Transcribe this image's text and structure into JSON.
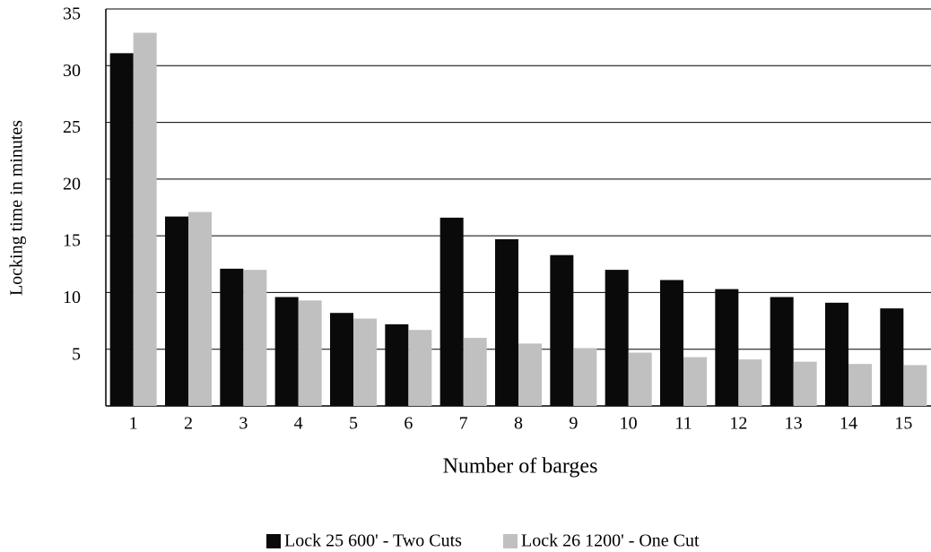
{
  "chart_data": {
    "type": "bar",
    "x_label": "Number of barges",
    "y_label": "Locking time in minutes",
    "categories": [
      "1",
      "2",
      "3",
      "4",
      "5",
      "6",
      "7",
      "8",
      "9",
      "10",
      "11",
      "12",
      "13",
      "14",
      "15"
    ],
    "series": [
      {
        "name": "Lock 25 600' - Two Cuts",
        "color": "#0a0a0a",
        "values": [
          31.1,
          16.7,
          12.1,
          9.6,
          8.2,
          7.2,
          16.6,
          14.7,
          13.3,
          12.0,
          11.1,
          10.3,
          9.6,
          9.1,
          8.6
        ]
      },
      {
        "name": "Lock 26 1200' - One Cut",
        "color": "#c0c0c0",
        "values": [
          32.9,
          17.1,
          12.0,
          9.3,
          7.7,
          6.7,
          6.0,
          5.5,
          5.1,
          4.7,
          4.3,
          4.1,
          3.9,
          3.7,
          3.6
        ]
      }
    ],
    "ylim": [
      0,
      35
    ],
    "yticks": [
      5,
      10,
      15,
      20,
      25,
      30,
      35
    ],
    "grid": true,
    "legend": "bottom"
  }
}
